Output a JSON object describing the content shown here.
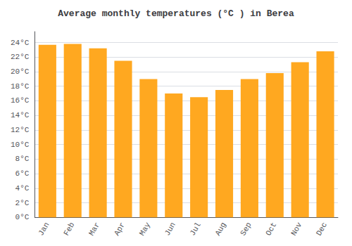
{
  "chart_data": {
    "type": "bar",
    "title": "Average monthly temperatures (°C ) in Berea",
    "categories": [
      "Jan",
      "Feb",
      "Mar",
      "Apr",
      "May",
      "Jun",
      "Jul",
      "Aug",
      "Sep",
      "Oct",
      "Nov",
      "Dec"
    ],
    "values": [
      23.7,
      23.8,
      23.2,
      21.5,
      19.0,
      17.0,
      16.5,
      17.5,
      19.0,
      19.8,
      21.3,
      22.8
    ],
    "color": "#FFA820",
    "ylim": [
      0,
      25.5
    ],
    "yticks": [
      {
        "value": 0,
        "label": "0°C"
      },
      {
        "value": 2,
        "label": "2°C"
      },
      {
        "value": 4,
        "label": "4°C"
      },
      {
        "value": 6,
        "label": "6°C"
      },
      {
        "value": 8,
        "label": "8°C"
      },
      {
        "value": 10,
        "label": "10°C"
      },
      {
        "value": 12,
        "label": "12°C"
      },
      {
        "value": 14,
        "label": "14°C"
      },
      {
        "value": 16,
        "label": "16°C"
      },
      {
        "value": 18,
        "label": "18°C"
      },
      {
        "value": 20,
        "label": "20°C"
      },
      {
        "value": 22,
        "label": "22°C"
      },
      {
        "value": 24,
        "label": "24°C"
      }
    ],
    "grid": true
  }
}
